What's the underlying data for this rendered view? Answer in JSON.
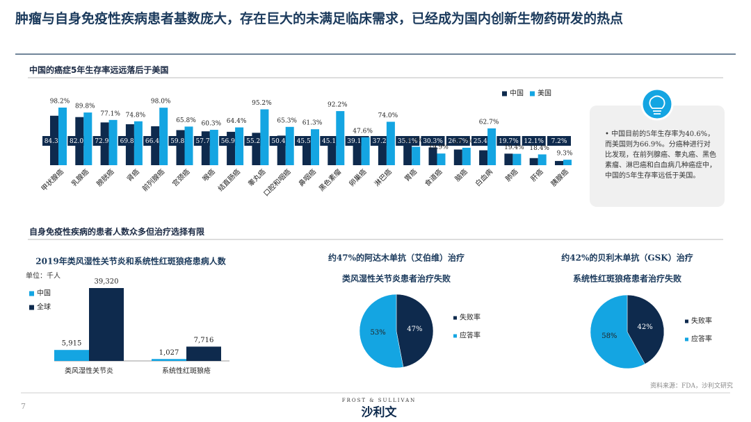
{
  "header": {
    "title": "肿瘤与自身免疫性疾病患者基数庞大，存在巨大的未满足临床需求，已经成为国内创新生物药研发的热点"
  },
  "sections": [
    "中国的癌症5年生存率远远落后于美国",
    "自身免疫性疾病的患者人数众多但治疗选择有限"
  ],
  "callout": "中国目前的5年生存率为40.6%，而美国则为66.9%。分癌种进行对比发现，在前列腺癌、睾丸癌、黑色素瘤、淋巴癌和白血病几种癌症中，中国的5年生存率远低于美国。",
  "source": "资料来源：FDA，沙利文研究",
  "page_number": "7",
  "logo": {
    "top": "FROST & SULLIVAN",
    "name": "沙利文"
  },
  "chart_data": [
    {
      "type": "bar",
      "categories": [
        "甲状腺癌",
        "乳腺癌",
        "膀胱癌",
        "肾癌",
        "前列腺癌",
        "宫颈癌",
        "喉癌",
        "结直肠癌",
        "睾丸癌",
        "口腔和咽癌",
        "鼻咽癌",
        "黑色素瘤",
        "卵巢癌",
        "淋巴癌",
        "胃癌",
        "食道癌",
        "脑癌",
        "白血病",
        "肺癌",
        "肝癌",
        "胰腺癌"
      ],
      "series": [
        {
          "name": "中国",
          "color": "#0e2a4d",
          "values": [
            84.3,
            82.0,
            72.9,
            69.8,
            66.4,
            59.8,
            57.7,
            56.9,
            55.2,
            50.4,
            45.5,
            45.1,
            39.1,
            37.2,
            35.1,
            30.3,
            26.7,
            25.4,
            19.7,
            12.1,
            7.2
          ],
          "value_labels": [
            "84.3%",
            "82.0%",
            "72.9%",
            "69.8%",
            "66.4%",
            "59.8%",
            "57.7%",
            "56.9%",
            "55.2%",
            "50.4%",
            "45.5%",
            "45.1%",
            "39.1%",
            "37.2%",
            "35.1%",
            "30.3%",
            "26.7%",
            "25.4%",
            "19.7%",
            "12.1%",
            "7.2%"
          ]
        },
        {
          "name": "美国",
          "color": "#14a5e2",
          "values": [
            98.2,
            89.8,
            77.1,
            74.8,
            98.0,
            65.8,
            60.3,
            64.4,
            95.2,
            65.3,
            61.3,
            92.2,
            47.6,
            74.0,
            31.5,
            19.9,
            29.7,
            62.7,
            19.4,
            18.4,
            9.3
          ],
          "value_labels": [
            "98.2%",
            "89.8%",
            "77.1%",
            "74.8%",
            "98.0%",
            "65.8%",
            "60.3%",
            "64.4%",
            "95.2%",
            "65.3%",
            "61.3%",
            "92.2%",
            "47.6%",
            "74.0%",
            "31.5%",
            "19.9%",
            "29.7%",
            "62.7%",
            "19.4%",
            "18.4%",
            "9.3%"
          ]
        }
      ]
    },
    {
      "type": "bar",
      "title": "2019年类风湿性关节炎和系统性红斑狼疮患病人数",
      "subtitle": "单位：千人",
      "categories": [
        "类风湿性关节炎",
        "系统性红斑狼疮"
      ],
      "series": [
        {
          "name": "中国",
          "color": "#14a5e2",
          "values": [
            5915,
            1027
          ],
          "value_labels": [
            "5,915",
            "1,027"
          ]
        },
        {
          "name": "全球",
          "color": "#0e2a4d",
          "values": [
            39320,
            7716
          ],
          "value_labels": [
            "39,320",
            "7,716"
          ]
        }
      ]
    },
    {
      "type": "pie",
      "title": "约47%的阿达木单抗（艾伯维）治疗",
      "subtitle": "类风湿性关节炎患者治疗失败",
      "categories": [
        "失败率",
        "应答率"
      ],
      "values": [
        47,
        53
      ],
      "value_labels": [
        "47%",
        "53%"
      ],
      "colors": [
        "#0e2a4d",
        "#14a5e2"
      ]
    },
    {
      "type": "pie",
      "title": "约42%的贝利木单抗（GSK）治疗",
      "subtitle": "系统性红斑狼疮患者治疗失败",
      "categories": [
        "失败率",
        "应答率"
      ],
      "values": [
        42,
        58
      ],
      "value_labels": [
        "42%",
        "58%"
      ],
      "colors": [
        "#0e2a4d",
        "#14a5e2"
      ]
    }
  ]
}
